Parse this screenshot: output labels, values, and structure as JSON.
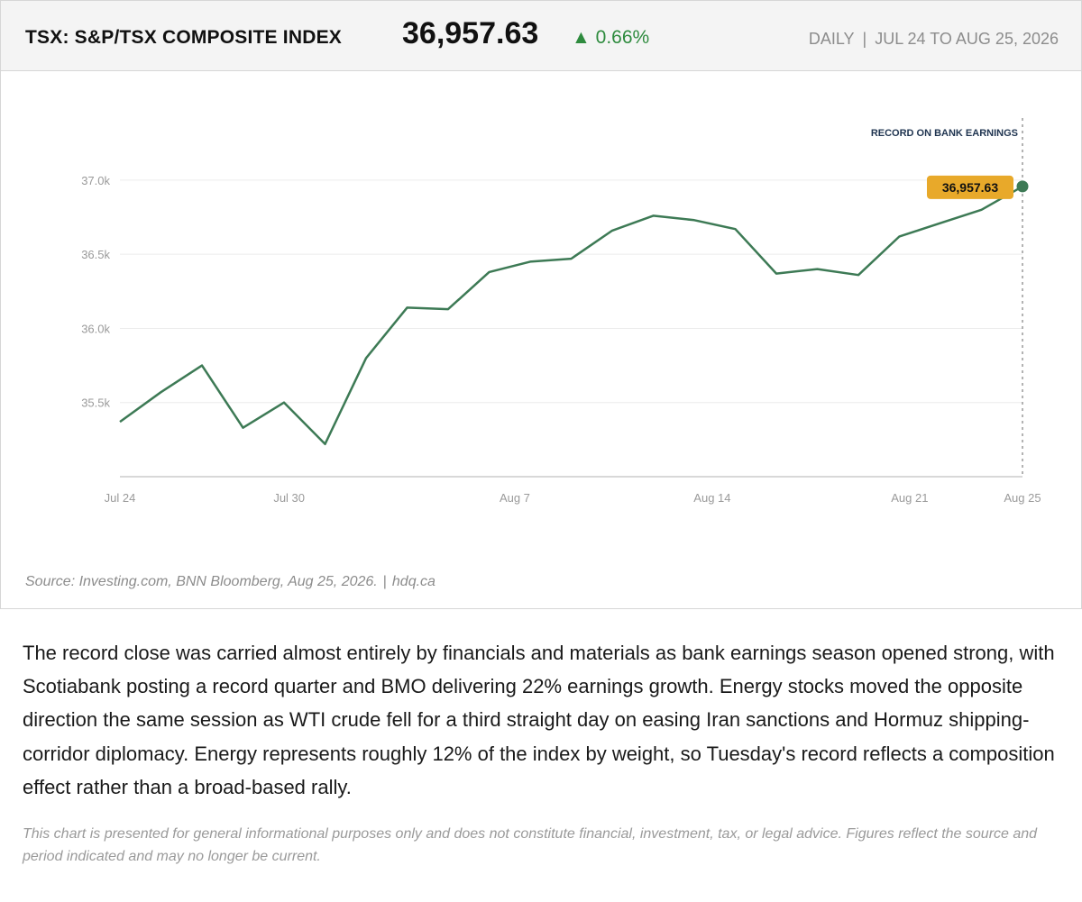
{
  "header": {
    "title": "TSX: S&P/TSX COMPOSITE INDEX",
    "value": "36,957.63",
    "change_arrow": "▲",
    "change": "0.66%",
    "frequency": "DAILY",
    "separator": "|",
    "range": "JUL 24 TO AUG 25, 2026"
  },
  "colors": {
    "line": "#3d7a55",
    "up": "#2e8b3e",
    "callout": "#e8a92a",
    "annotation_text": "#1f3450"
  },
  "chart_data": {
    "type": "line",
    "title": "TSX: S&P/TSX COMPOSITE INDEX",
    "xlabel": "",
    "ylabel": "",
    "grid": true,
    "x": [
      "2026-07-24",
      "2026-07-27",
      "2026-07-28",
      "2026-07-29",
      "2026-07-30",
      "2026-07-31",
      "2026-08-03",
      "2026-08-04",
      "2026-08-05",
      "2026-08-06",
      "2026-08-07",
      "2026-08-10",
      "2026-08-11",
      "2026-08-12",
      "2026-08-13",
      "2026-08-14",
      "2026-08-17",
      "2026-08-18",
      "2026-08-19",
      "2026-08-20",
      "2026-08-21",
      "2026-08-24",
      "2026-08-25"
    ],
    "values": [
      35370,
      35570,
      35750,
      35330,
      35500,
      35220,
      35800,
      36140,
      36130,
      36380,
      36450,
      36470,
      36660,
      36760,
      36730,
      36670,
      36370,
      36400,
      36360,
      36620,
      36710,
      36800,
      36957.63
    ],
    "x_tick_labels": [
      {
        "x": "2026-07-24",
        "label": "Jul 24"
      },
      {
        "x": "2026-07-30",
        "label": "Jul 30"
      },
      {
        "x": "2026-08-07",
        "label": "Aug 7"
      },
      {
        "x": "2026-08-14",
        "label": "Aug 14"
      },
      {
        "x": "2026-08-21",
        "label": "Aug 21"
      },
      {
        "x": "2026-08-25",
        "label": "Aug 25"
      }
    ],
    "y_ticks": [
      {
        "value": 35500,
        "label": "35.5k"
      },
      {
        "value": 36000,
        "label": "36.0k"
      },
      {
        "value": 36500,
        "label": "36.5k"
      },
      {
        "value": 37000,
        "label": "37.0k"
      }
    ],
    "ylim": [
      35000,
      37200
    ],
    "annotation": {
      "x": "2026-08-25",
      "text": "RECORD ON BANK EARNINGS",
      "value_label": "36,957.63"
    }
  },
  "source": {
    "text": "Source: Investing.com, BNN Bloomberg, Aug 25, 2026.",
    "separator": "|",
    "site": "hdq.ca"
  },
  "body_text": "The record close was carried almost entirely by financials and materials as bank earnings season opened strong, with Scotiabank posting a record quarter and BMO delivering 22% earnings growth. Energy stocks moved the opposite direction the same session as WTI crude fell for a third straight day on easing Iran sanctions and Hormuz shipping-corridor diplomacy. Energy represents roughly 12% of the index by weight, so Tuesday's record reflects a composition effect rather than a broad-based rally.",
  "disclaimer": "This chart is presented for general informational purposes only and does not constitute financial, investment, tax, or legal advice. Figures reflect the source and period indicated and may no longer be current."
}
